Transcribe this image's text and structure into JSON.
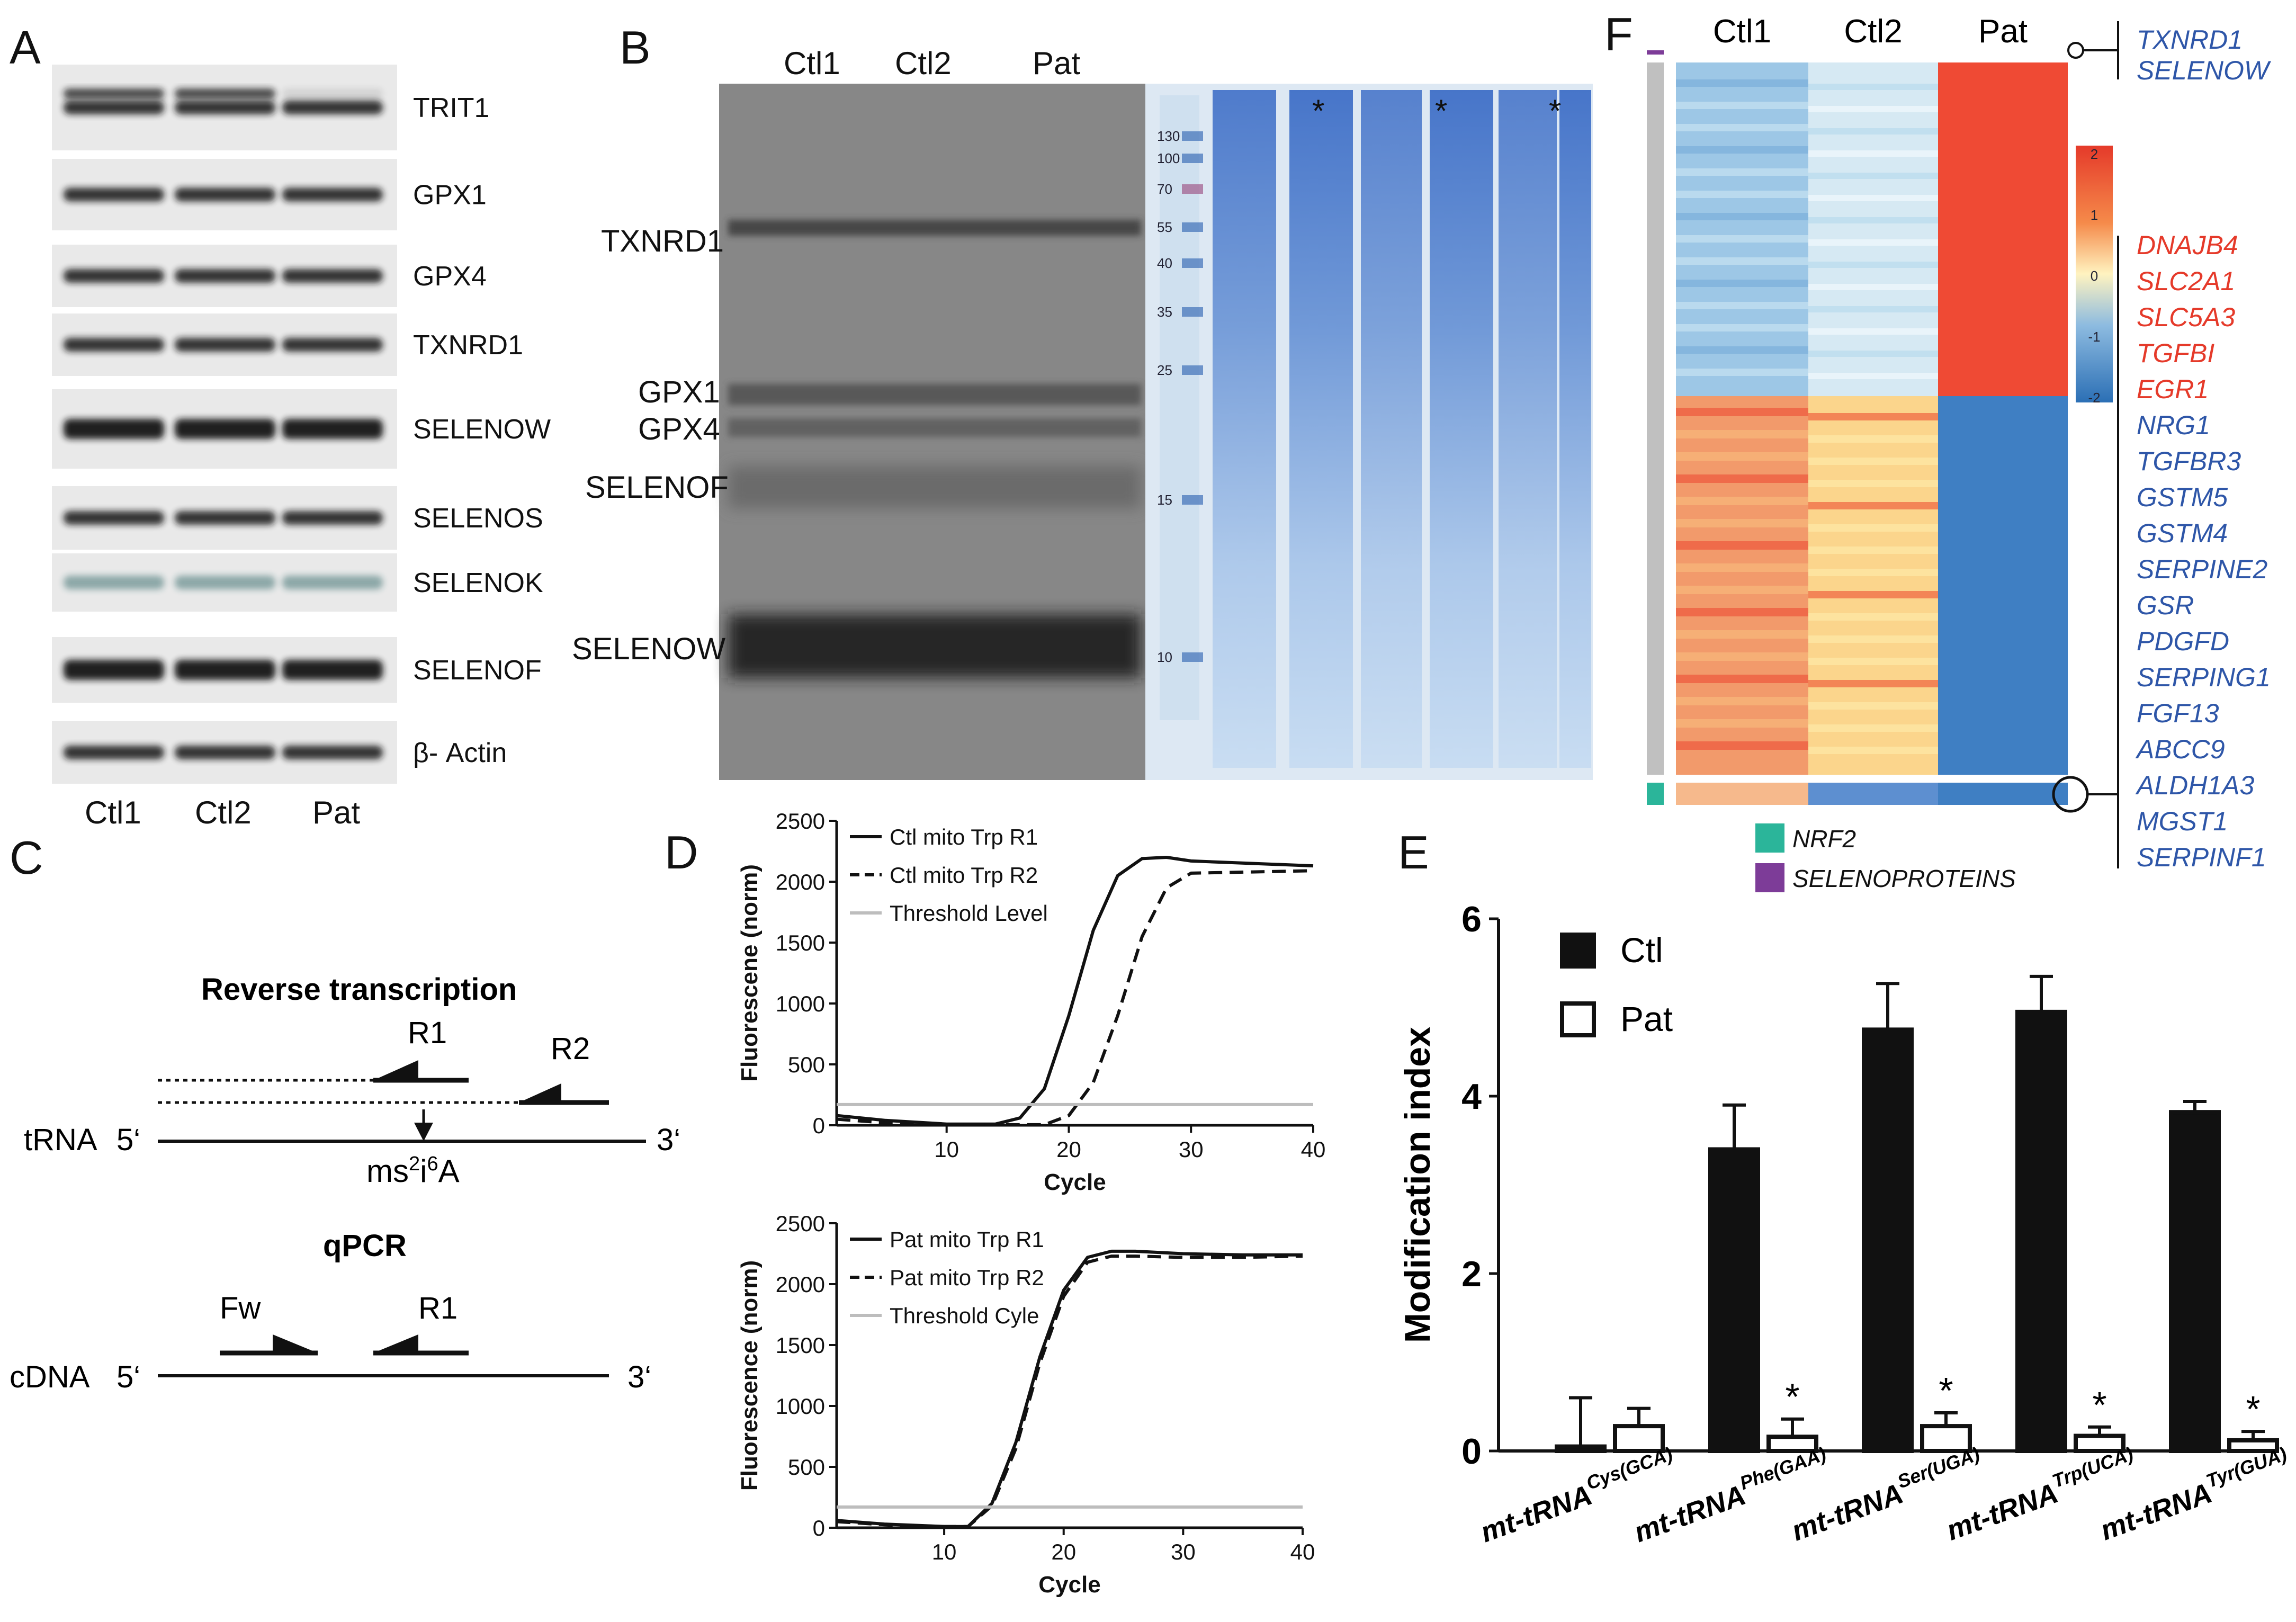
{
  "panels": {
    "a": "A",
    "b": "B",
    "c": "C",
    "d": "D",
    "e": "E",
    "f": "F"
  },
  "colors": {
    "black": "#111111",
    "red": "#e53a2a",
    "blue": "#2e56a8",
    "teal": "#2bb59a",
    "purple": "#7d3c98",
    "gel_blue": "#4f7fc9",
    "grey": "#c0c0c0"
  },
  "blot_a": {
    "rows": [
      "TRIT1",
      "GPX1",
      "GPX4",
      "TXNRD1",
      "SELENOW",
      "SELENOS",
      "SELENOK",
      "SELENOF",
      "β- Actin"
    ],
    "lanes": [
      "Ctl1",
      "Ctl2",
      "Pat"
    ]
  },
  "gel_b": {
    "lanes": [
      "Ctl1",
      "Ctl2",
      "Pat"
    ],
    "bands": [
      "TXNRD1",
      "GPX1",
      "GPX4",
      "SELENOF",
      "SELENOW"
    ],
    "markers": [
      "130",
      "100",
      "70",
      "55",
      "40",
      "35",
      "25",
      "15",
      "10"
    ],
    "star": "*"
  },
  "schematic_c": {
    "rt_title": "Reverse transcription",
    "qpcr_title": "qPCR",
    "r1": "R1",
    "r2": "R2",
    "fw": "Fw",
    "trna": "tRNA",
    "cdna": "cDNA",
    "five": "5‘",
    "three": "3‘",
    "mod_ms": "ms",
    "mod_2": "2",
    "mod_i": "i",
    "mod_6": "6",
    "mod_a": "A"
  },
  "chart_data": [
    {
      "type": "line",
      "id": "D-top",
      "xlabel": "Cycle",
      "ylabel": "Fluorescene (norm)",
      "xlim": [
        1,
        40
      ],
      "ylim": [
        0,
        2500
      ],
      "xticks": [
        10,
        20,
        30,
        40
      ],
      "yticks": [
        0,
        500,
        1000,
        1500,
        2000,
        2500
      ],
      "legend": [
        "Ctl mito Trp R1",
        "Ctl mito Trp R2",
        "Threshold Level"
      ],
      "series": [
        {
          "name": "Ctl mito Trp R1",
          "style": "solid",
          "x": [
            1,
            5,
            10,
            14,
            16,
            18,
            20,
            22,
            24,
            26,
            28,
            30,
            35,
            40
          ],
          "y": [
            80,
            40,
            10,
            10,
            60,
            300,
            900,
            1600,
            2050,
            2190,
            2200,
            2170,
            2150,
            2130
          ]
        },
        {
          "name": "Ctl mito Trp R2",
          "style": "dashed",
          "x": [
            1,
            5,
            10,
            18,
            20,
            22,
            24,
            26,
            28,
            30,
            35,
            40
          ],
          "y": [
            50,
            20,
            5,
            5,
            80,
            350,
            900,
            1550,
            1950,
            2070,
            2080,
            2090
          ]
        },
        {
          "name": "Threshold Level",
          "style": "grey",
          "x": [
            1,
            40
          ],
          "y": [
            170,
            170
          ]
        }
      ]
    },
    {
      "type": "line",
      "id": "D-bottom",
      "xlabel": "Cycle",
      "ylabel": "Fluorescence (norm)",
      "xlim": [
        1,
        40
      ],
      "ylim": [
        0,
        2500
      ],
      "xticks": [
        10,
        20,
        30,
        40
      ],
      "yticks": [
        0,
        500,
        1000,
        1500,
        2000,
        2500
      ],
      "legend": [
        "Pat mito Trp R1",
        "Pat mito Trp R2",
        "Threshold Cyle"
      ],
      "series": [
        {
          "name": "Pat mito Trp R1",
          "style": "solid",
          "x": [
            1,
            5,
            10,
            12,
            14,
            16,
            18,
            20,
            22,
            24,
            26,
            30,
            35,
            40
          ],
          "y": [
            60,
            30,
            10,
            10,
            200,
            700,
            1400,
            1950,
            2220,
            2270,
            2270,
            2250,
            2240,
            2240
          ]
        },
        {
          "name": "Pat mito Trp R2",
          "style": "dashed",
          "x": [
            1,
            5,
            10,
            12,
            14,
            16,
            18,
            20,
            22,
            24,
            26,
            30,
            35,
            40
          ],
          "y": [
            50,
            25,
            10,
            10,
            180,
            650,
            1350,
            1900,
            2180,
            2230,
            2230,
            2220,
            2220,
            2230
          ]
        },
        {
          "name": "Threshold Cyle",
          "style": "grey",
          "x": [
            1,
            40
          ],
          "y": [
            170,
            170
          ]
        }
      ]
    },
    {
      "type": "bar",
      "id": "E",
      "ylabel": "Modification index",
      "ylim": [
        0,
        6
      ],
      "yticks": [
        0,
        2,
        4,
        6
      ],
      "categories": [
        {
          "base": "mt-tRNA",
          "sup": "Cys(GCA)"
        },
        {
          "base": "mt-tRNA",
          "sup": "Phe(GAA)"
        },
        {
          "base": "mt-tRNA",
          "sup": "Ser(UGA)"
        },
        {
          "base": "mt-tRNA",
          "sup": "Trp(UCA)"
        },
        {
          "base": "mt-tRNA",
          "sup": "Tyr(GUA)"
        }
      ],
      "series": [
        {
          "name": "Ctl",
          "values": [
            0.05,
            3.4,
            4.75,
            4.95,
            3.82
          ],
          "errors": [
            0.55,
            0.5,
            0.52,
            0.4,
            0.12
          ]
        },
        {
          "name": "Pat",
          "values": [
            0.28,
            0.16,
            0.28,
            0.17,
            0.12
          ],
          "errors": [
            0.2,
            0.2,
            0.15,
            0.1,
            0.1
          ]
        }
      ],
      "significance": [
        "",
        "*",
        "*",
        "*",
        "*"
      ]
    },
    {
      "type": "heatmap",
      "id": "F",
      "columns": [
        "Ctl1",
        "Ctl2",
        "Pat"
      ],
      "scale": {
        "ticks": [
          "2",
          "1",
          "0",
          "-1",
          "-2"
        ]
      },
      "legend": [
        "NRF2",
        "SELENOPROTEINS"
      ],
      "genes_top": [
        "TXNRD1",
        "SELENOW"
      ],
      "genes_red": [
        "DNAJB4",
        "SLC2A1",
        "SLC5A3",
        "TGFBI",
        "EGR1"
      ],
      "genes_blue": [
        "NRG1",
        "TGFBR3",
        "GSTM5",
        "GSTM4",
        "SERPINE2",
        "GSR",
        "PDGFD",
        "SERPING1",
        "FGF13",
        "ABCC9",
        "ALDH1A3",
        "MGST1",
        "SERPINF1"
      ]
    }
  ]
}
